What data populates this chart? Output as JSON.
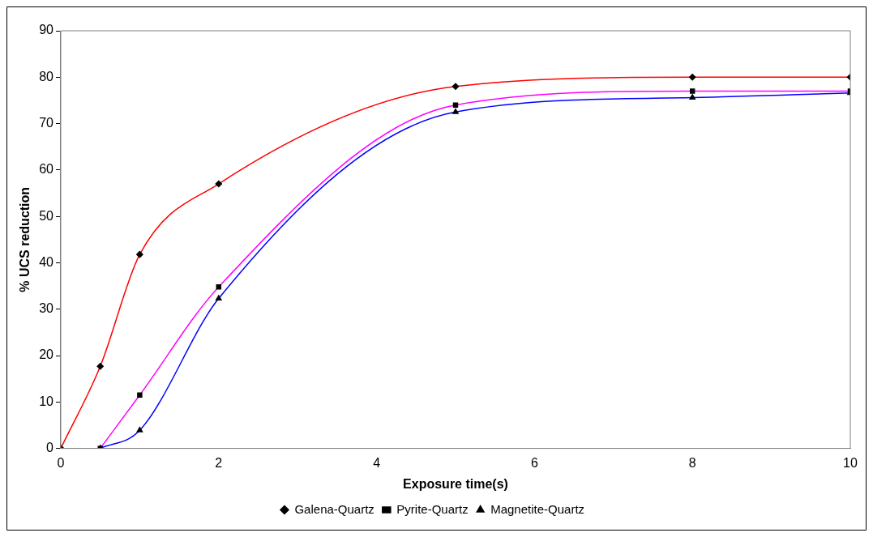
{
  "chart_data": {
    "type": "line",
    "xlabel": "Exposure time(s)",
    "ylabel": "% UCS reduction",
    "xlim": [
      0,
      10
    ],
    "xticks": [
      0,
      2,
      4,
      6,
      8,
      10
    ],
    "ylim": [
      0,
      90
    ],
    "yticks": [
      0,
      10,
      20,
      30,
      40,
      50,
      60,
      70,
      80,
      90
    ],
    "grid": false,
    "legend": "bottom",
    "series": [
      {
        "name": "Galena-Quartz",
        "color": "#ff0000",
        "marker": "diamond",
        "x": [
          0,
          0.5,
          1,
          2,
          5,
          8,
          10
        ],
        "values": [
          0,
          17.7,
          41.8,
          57,
          78,
          80,
          80
        ]
      },
      {
        "name": "Pyrite-Quartz",
        "color": "#ff00ff",
        "marker": "square",
        "x": [
          0.5,
          1,
          2,
          5,
          8,
          10
        ],
        "values": [
          0,
          11.5,
          34.8,
          74,
          77,
          77
        ]
      },
      {
        "name": "Magnetite-Quartz",
        "color": "#0000ff",
        "marker": "triangle",
        "x": [
          0.5,
          1,
          2,
          5,
          8,
          10
        ],
        "values": [
          0,
          3.9,
          32.3,
          72.5,
          75.6,
          76.6
        ]
      }
    ]
  }
}
